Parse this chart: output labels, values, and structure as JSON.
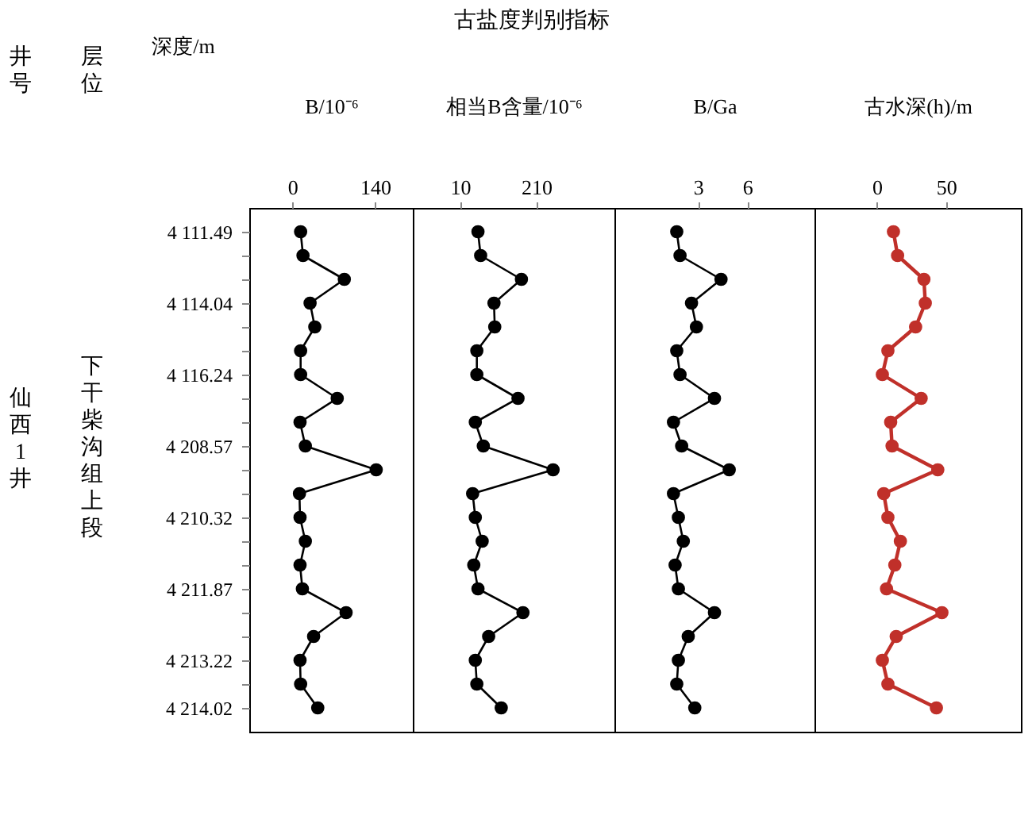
{
  "chart_data": [
    {
      "type": "line",
      "orientation": "horizontal",
      "ylabel": "深度/m",
      "xlabel": "B/10⁻⁶",
      "annotations": [
        "井号",
        "层位",
        "仙西1井",
        "下干柴沟组上段",
        "古盐度判别指标"
      ],
      "categories": [
        "4 111.49",
        null,
        null,
        "4 114.04",
        null,
        null,
        "4 116.24",
        null,
        null,
        "4 208.57",
        null,
        null,
        "4 210.32",
        null,
        null,
        "4 211.87",
        null,
        null,
        "4 213.22",
        null,
        "4 214.02"
      ],
      "xlim": [
        -73,
        204
      ],
      "xticks": [
        0,
        140
      ],
      "grid": false,
      "marker": "circle",
      "line_style": "solid",
      "series": [
        {
          "color": "#000000",
          "values": [
            14,
            18,
            88,
            30,
            38,
            14,
            14,
            76,
            13,
            22,
            142,
            12,
            13,
            22,
            13,
            17,
            91,
            36,
            13,
            14,
            43
          ]
        }
      ]
    },
    {
      "type": "line",
      "orientation": "horizontal",
      "xlabel": "相当B含量/10⁻⁶",
      "tick_labels": "x",
      "categories": [
        null,
        null,
        null,
        null,
        null,
        null,
        null,
        null,
        null,
        null,
        null,
        null,
        null,
        null,
        null,
        null,
        null,
        null,
        null,
        null,
        null
      ],
      "xlim": [
        -114,
        415
      ],
      "xticks": [
        10,
        210
      ],
      "grid": false,
      "marker": "circle",
      "line_style": "solid",
      "series": [
        {
          "color": "#000000",
          "values": [
            57,
            64,
            171,
            99,
            101,
            54,
            54,
            162,
            50,
            71,
            254,
            43,
            50,
            68,
            46,
            57,
            175,
            85,
            50,
            54,
            118
          ]
        }
      ]
    },
    {
      "type": "line",
      "orientation": "horizontal",
      "xlabel": "B/Ga",
      "tick_labels": "x",
      "categories": [
        null,
        null,
        null,
        null,
        null,
        null,
        null,
        null,
        null,
        null,
        null,
        null,
        null,
        null,
        null,
        null,
        null,
        null,
        null,
        null,
        null
      ],
      "xlim": [
        -2.1,
        10.1
      ],
      "xticks": [
        3,
        6
      ],
      "grid": false,
      "marker": "circle",
      "line_style": "solid",
      "series": [
        {
          "color": "#000000",
          "values": [
            1.7,
            1.9,
            4.4,
            2.6,
            2.9,
            1.7,
            1.9,
            4.0,
            1.5,
            2.0,
            4.9,
            1.5,
            1.8,
            2.1,
            1.6,
            1.8,
            4.0,
            2.4,
            1.8,
            1.7,
            2.8
          ]
        }
      ]
    },
    {
      "type": "line",
      "orientation": "horizontal",
      "xlabel": "古水深(h)/m",
      "tick_labels": "x",
      "categories": [
        null,
        null,
        null,
        null,
        null,
        null,
        null,
        null,
        null,
        null,
        null,
        null,
        null,
        null,
        null,
        null,
        null,
        null,
        null,
        null,
        null
      ],
      "xlim": [
        -45,
        104
      ],
      "xticks": [
        0,
        50
      ],
      "grid": false,
      "marker": "circle",
      "line_style": "solid",
      "series": [
        {
          "color": "#c0302a",
          "values": [
            12,
            15,
            34,
            35,
            28,
            8,
            4,
            32,
            10,
            11,
            44,
            5,
            8,
            17,
            13,
            7,
            47,
            14,
            4,
            8,
            43
          ]
        }
      ]
    }
  ]
}
